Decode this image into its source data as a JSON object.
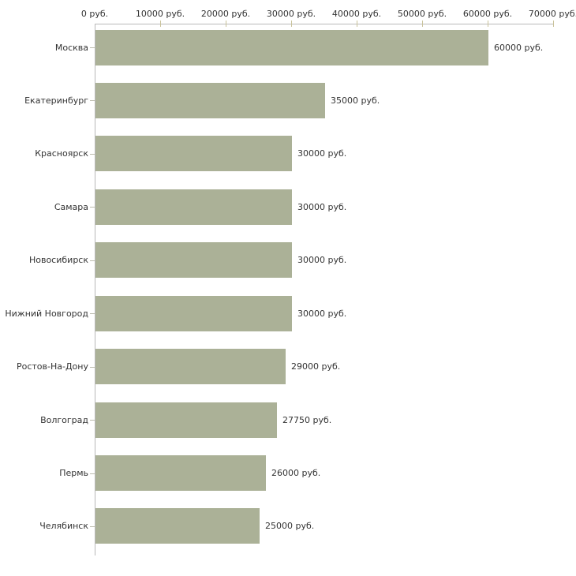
{
  "chart_data": {
    "type": "bar",
    "orientation": "horizontal",
    "title": "",
    "xlabel": "",
    "ylabel": "",
    "xlim": [
      0,
      70000
    ],
    "grid": false,
    "legend": null,
    "categories": [
      "Москва",
      "Екатеринбург",
      "Красноярск",
      "Самара",
      "Новосибирск",
      "Нижний Новгород",
      "Ростов-На-Дону",
      "Волгоград",
      "Пермь",
      "Челябинск"
    ],
    "values": [
      60000,
      35000,
      30000,
      30000,
      30000,
      30000,
      29000,
      27750,
      26000,
      25000
    ],
    "value_labels": [
      "60000 руб.",
      "35000 руб.",
      "30000 руб.",
      "30000 руб.",
      "30000 руб.",
      "30000 руб.",
      "29000 руб.",
      "27750 руб.",
      "26000 руб.",
      "25000 руб."
    ],
    "x_tick_values": [
      0,
      10000,
      20000,
      30000,
      40000,
      50000,
      60000,
      70000
    ],
    "x_tick_labels": [
      "0 руб.",
      "10000 руб.",
      "20000 руб.",
      "30000 руб.",
      "40000 руб.",
      "50000 руб.",
      "60000 руб.",
      "70000 руб."
    ],
    "colors": {
      "bar": "#abb197",
      "axis": "#b9b9b9",
      "tick": "#c9c29a",
      "text": "#333333",
      "background": "#ffffff"
    }
  }
}
